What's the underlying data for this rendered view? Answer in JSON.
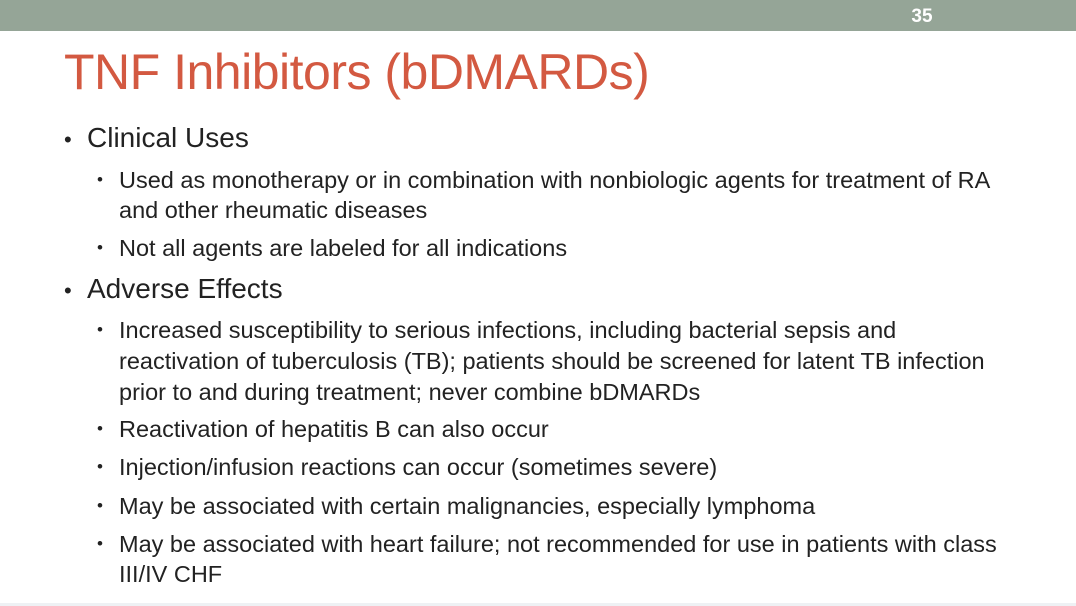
{
  "slide": {
    "number": "35",
    "title": "TNF Inhibitors (bDMARDs)",
    "bullet_glyph": "•",
    "sections": [
      {
        "heading": "Clinical Uses",
        "items": [
          "Used as monotherapy or in combination with nonbiologic agents for treatment of RA and other rheumatic diseases",
          "Not all agents are labeled for all indications"
        ]
      },
      {
        "heading": "Adverse Effects",
        "items": [
          "Increased susceptibility to serious infections, including bacterial sepsis and reactivation of tuberculosis (TB); patients should be screened for latent TB infection prior to and during treatment; never combine bDMARDs",
          "Reactivation of hepatitis B can also occur",
          "Injection/infusion reactions can occur (sometimes severe)",
          "May be associated with certain malignancies, especially lymphoma",
          "May be associated with heart failure; not recommended for use in patients with class III/IV CHF"
        ]
      }
    ],
    "colors": {
      "title": "#d35941",
      "top_bar": "#95a597",
      "text": "#222222"
    }
  }
}
